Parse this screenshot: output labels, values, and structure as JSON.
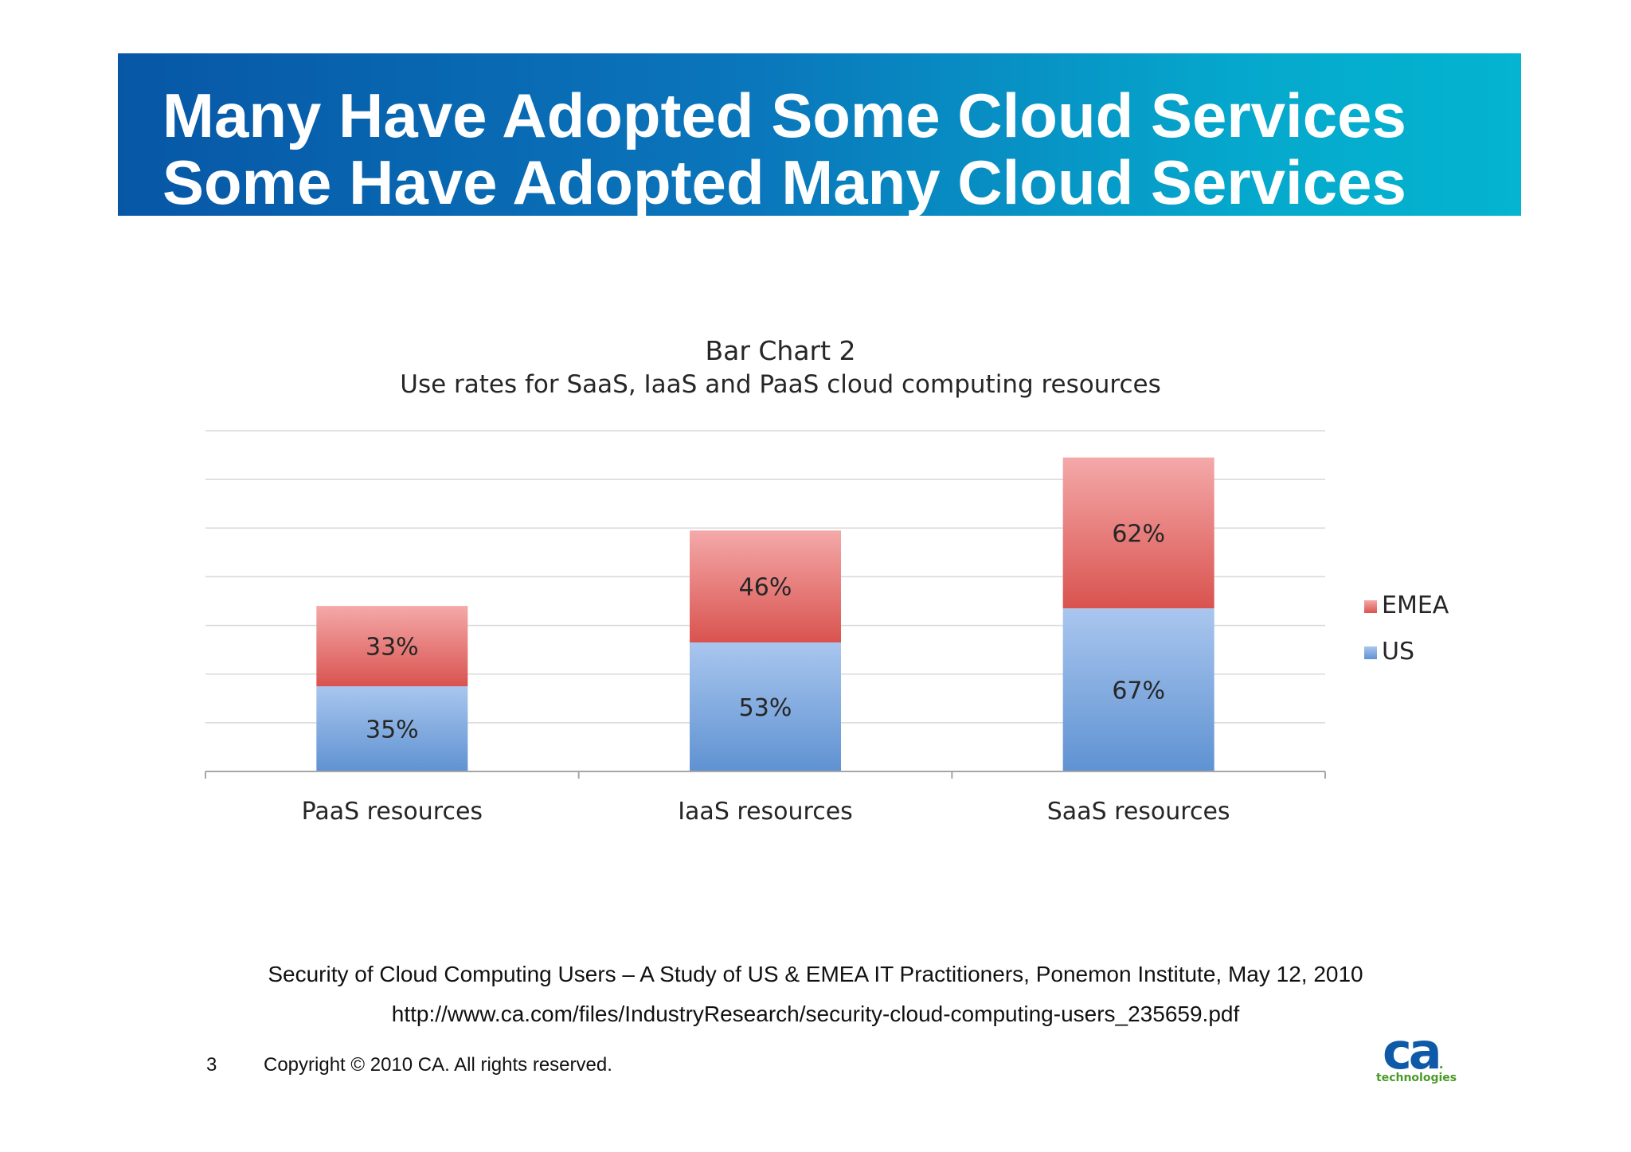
{
  "header": {
    "title_line1": "Many Have Adopted Some Cloud Services",
    "title_line2": "Some Have Adopted Many Cloud Services"
  },
  "chart_data": {
    "type": "bar",
    "stacked": true,
    "title": "Bar Chart 2",
    "subtitle": "Use rates for SaaS, IaaS and PaaS cloud computing resources",
    "categories": [
      "PaaS resources",
      "IaaS resources",
      "SaaS resources"
    ],
    "series": [
      {
        "name": "US",
        "values": [
          35,
          53,
          67
        ],
        "labels": [
          "35%",
          "53%",
          "67%"
        ],
        "color": "#7ea6dc"
      },
      {
        "name": "EMEA",
        "values": [
          33,
          46,
          62
        ],
        "labels": [
          "33%",
          "46%",
          "62%"
        ],
        "color": "#e06666"
      }
    ],
    "legend": {
      "position": "right",
      "order": [
        "EMEA",
        "US"
      ]
    },
    "ylim": [
      0,
      140
    ],
    "y_gridlines": [
      20,
      40,
      60,
      80,
      100,
      120,
      140
    ],
    "y_tick_labels_shown": false,
    "grid": true,
    "colors": {
      "us_top": "#a9c6ee",
      "us_bottom": "#5f92d2",
      "emea_top": "#f4a9a9",
      "emea_bottom": "#d9534f"
    }
  },
  "footer": {
    "citation": "Security of Cloud Computing Users – A Study of US & EMEA IT Practitioners, Ponemon Institute, May 12, 2010",
    "url": "http://www.ca.com/files/IndustryResearch/security-cloud-computing-users_235659.pdf",
    "page_number": "3",
    "copyright": "Copyright © 2010 CA. All rights reserved."
  },
  "logo": {
    "mark": "ca",
    "wordmark": "technologies"
  }
}
